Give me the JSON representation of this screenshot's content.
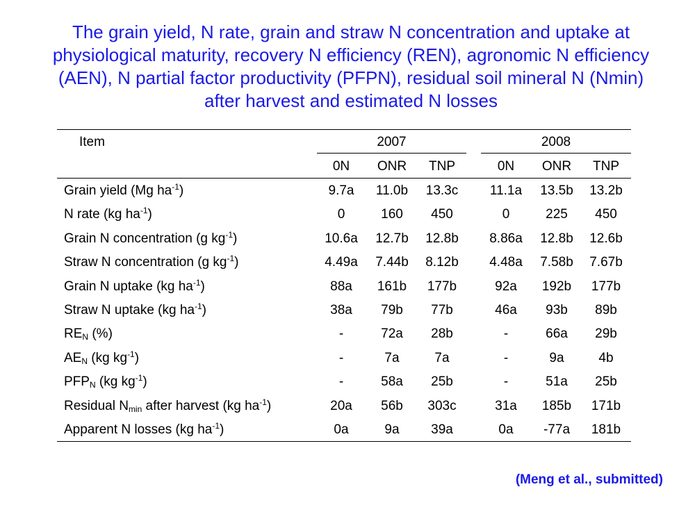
{
  "title": {
    "lines": [
      "The grain yield, N rate, grain and straw N concentration and uptake at",
      "physiological maturity, recovery N efficiency (REN), agronomic N efficiency",
      "(AEN), N partial factor productivity (PFPN), residual soil mineral N (Nmin)",
      "after harvest and estimated N losses"
    ]
  },
  "table": {
    "item_header": "Item",
    "years": [
      "2007",
      "2008"
    ],
    "treatments": [
      "0N",
      "ONR",
      "TNP",
      "0N",
      "ONR",
      "TNP"
    ],
    "rows": [
      {
        "pre": "Grain yield (Mg ha",
        "sup": "-1",
        "post": ")",
        "values": [
          "9.7a",
          "11.0b",
          "13.3c",
          "11.1a",
          "13.5b",
          "13.2b"
        ]
      },
      {
        "pre": "N rate (kg ha",
        "sup": "-1",
        "post": ")",
        "values": [
          "0",
          "160",
          "450",
          "0",
          "225",
          "450"
        ]
      },
      {
        "pre": "Grain N concentration (g kg",
        "sup": "-1",
        "post": ")",
        "values": [
          "10.6a",
          "12.7b",
          "12.8b",
          "8.86a",
          "12.8b",
          "12.6b"
        ]
      },
      {
        "pre": "Straw N concentration (g kg",
        "sup": "-1",
        "post": ")",
        "values": [
          "4.49a",
          "7.44b",
          "8.12b",
          "4.48a",
          "7.58b",
          "7.67b"
        ]
      },
      {
        "pre": "Grain N uptake (kg ha",
        "sup": "-1",
        "post": ")",
        "values": [
          "88a",
          "161b",
          "177b",
          "92a",
          "192b",
          "177b"
        ]
      },
      {
        "pre": "Straw N uptake (kg ha",
        "sup": "-1",
        "post": ")",
        "values": [
          "38a",
          "79b",
          "77b",
          "46a",
          "93b",
          "89b"
        ]
      },
      {
        "pre": "RE",
        "sub": "N",
        "post": " (%)",
        "values": [
          "-",
          "72a",
          "28b",
          "-",
          "66a",
          "29b"
        ]
      },
      {
        "pre": "AE",
        "sub": "N",
        "post": " (kg kg",
        "sup": "-1",
        "post2": ")",
        "values": [
          "-",
          "7a",
          "7a",
          "-",
          "9a",
          "4b"
        ]
      },
      {
        "pre": "PFP",
        "sub": "N",
        "post": " (kg kg",
        "sup": "-1",
        "post2": ")",
        "values": [
          "-",
          "58a",
          "25b",
          "-",
          "51a",
          "25b"
        ]
      },
      {
        "pre": "Residual N",
        "sub": "min",
        "post": " after harvest (kg ha",
        "sup": "-1",
        "post2": ")",
        "values": [
          "20a",
          "56b",
          "303c",
          "31a",
          "185b",
          "171b"
        ]
      },
      {
        "pre": "Apparent N losses (kg ha",
        "sup": "-1",
        "post": ")",
        "values": [
          "0a",
          "9a",
          "39a",
          "0a",
          "-77a",
          "181b"
        ]
      }
    ]
  },
  "citation": "(Meng et al., submitted)",
  "colors": {
    "title": "#1a1ae6",
    "citation": "#1a1ae6",
    "text": "#000000"
  }
}
